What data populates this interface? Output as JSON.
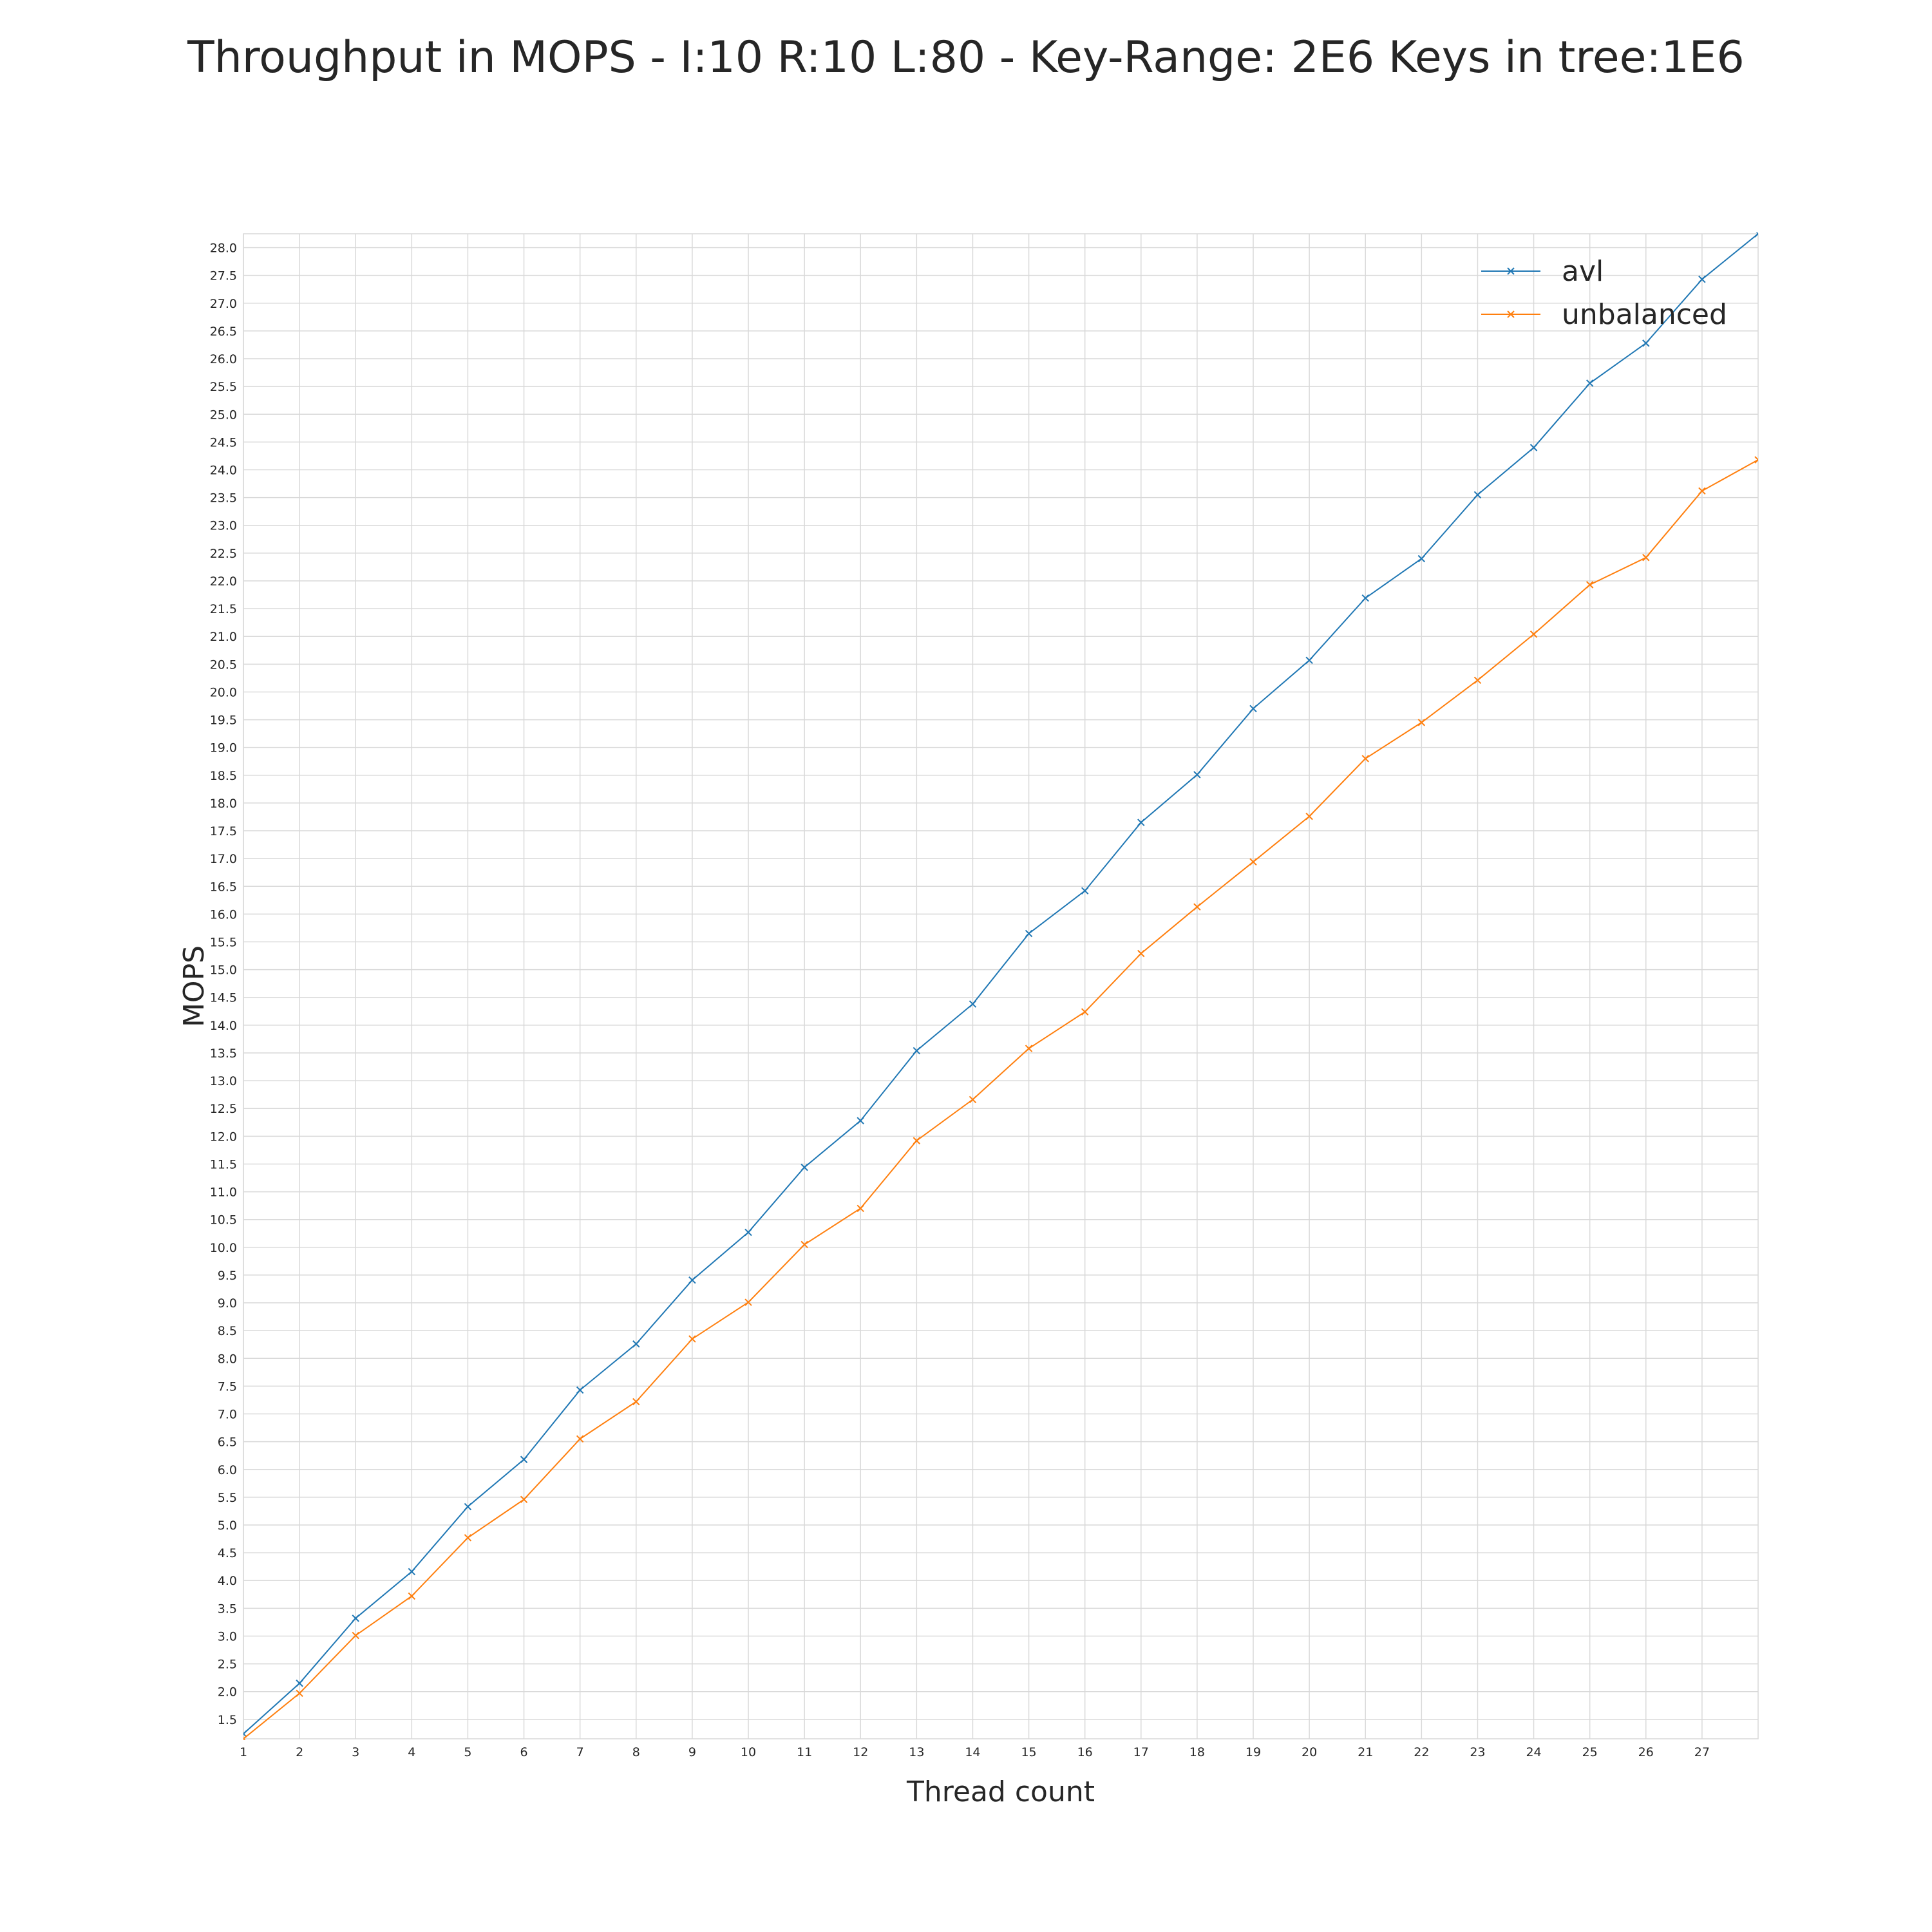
{
  "chart_data": {
    "type": "line",
    "title": "Throughput in MOPS - I:10 R:10 L:80 - Key-Range: 2E6 Keys in tree:1E6",
    "xlabel": "Thread count",
    "ylabel": "MOPS",
    "xlim": [
      1,
      28
    ],
    "ylim": [
      1.15,
      28.25
    ],
    "x_ticks": [
      1,
      2,
      3,
      4,
      5,
      6,
      7,
      8,
      9,
      10,
      11,
      12,
      13,
      14,
      15,
      16,
      17,
      18,
      19,
      20,
      21,
      22,
      23,
      24,
      25,
      26,
      27
    ],
    "x_tick_labels": [
      "1",
      "2",
      "3",
      "4",
      "5",
      "6",
      "7",
      "8",
      "9",
      "10",
      "11",
      "12",
      "13",
      "14",
      "15",
      "16",
      "17",
      "18",
      "19",
      "20",
      "21",
      "22",
      "23",
      "24",
      "25",
      "26",
      "27"
    ],
    "y_ticks": [
      1.5,
      2.0,
      2.5,
      3.0,
      3.5,
      4.0,
      4.5,
      5.0,
      5.5,
      6.0,
      6.5,
      7.0,
      7.5,
      8.0,
      8.5,
      9.0,
      9.5,
      10.0,
      10.5,
      11.0,
      11.5,
      12.0,
      12.5,
      13.0,
      13.5,
      14.0,
      14.5,
      15.0,
      15.5,
      16.0,
      16.5,
      17.0,
      17.5,
      18.0,
      18.5,
      19.0,
      19.5,
      20.0,
      20.5,
      21.0,
      21.5,
      22.0,
      22.5,
      23.0,
      23.5,
      24.0,
      24.5,
      25.0,
      25.5,
      26.0,
      26.5,
      27.0,
      27.5,
      28.0
    ],
    "y_tick_labels": [
      "1.5",
      "2.0",
      "2.5",
      "3.0",
      "3.5",
      "4.0",
      "4.5",
      "5.0",
      "5.5",
      "6.0",
      "6.5",
      "7.0",
      "7.5",
      "8.0",
      "8.5",
      "9.0",
      "9.5",
      "10.0",
      "10.5",
      "11.0",
      "11.5",
      "12.0",
      "12.5",
      "13.0",
      "13.5",
      "14.0",
      "14.5",
      "15.0",
      "15.5",
      "16.0",
      "16.5",
      "17.0",
      "17.5",
      "18.0",
      "18.5",
      "19.0",
      "19.5",
      "20.0",
      "20.5",
      "21.0",
      "21.5",
      "22.0",
      "22.5",
      "23.0",
      "23.5",
      "24.0",
      "24.5",
      "25.0",
      "25.5",
      "26.0",
      "26.5",
      "27.0",
      "27.5",
      "28.0"
    ],
    "grid": true,
    "legend_position": "top-right",
    "x": [
      1,
      2,
      3,
      4,
      5,
      6,
      7,
      8,
      9,
      10,
      11,
      12,
      13,
      14,
      15,
      16,
      17,
      18,
      19,
      20,
      21,
      22,
      23,
      24,
      25,
      26,
      27,
      28
    ],
    "series": [
      {
        "name": "avl",
        "color": "#1f77b4",
        "marker": "x",
        "values": [
          1.24,
          2.15,
          3.32,
          4.16,
          5.33,
          6.18,
          7.43,
          8.26,
          9.41,
          10.27,
          11.44,
          12.28,
          13.54,
          14.38,
          15.65,
          16.42,
          17.65,
          18.51,
          19.7,
          20.57,
          21.69,
          22.4,
          23.55,
          24.4,
          25.56,
          26.28,
          27.43,
          28.25
        ]
      },
      {
        "name": "unbalanced",
        "color": "#ff7f0e",
        "marker": "x",
        "values": [
          1.15,
          1.97,
          3.01,
          3.72,
          4.77,
          5.46,
          6.55,
          7.22,
          8.35,
          9.01,
          10.05,
          10.7,
          11.92,
          12.66,
          13.58,
          14.24,
          15.29,
          16.13,
          16.94,
          17.76,
          18.8,
          19.45,
          20.21,
          21.04,
          21.93,
          22.42,
          23.62,
          24.18
        ]
      }
    ]
  }
}
